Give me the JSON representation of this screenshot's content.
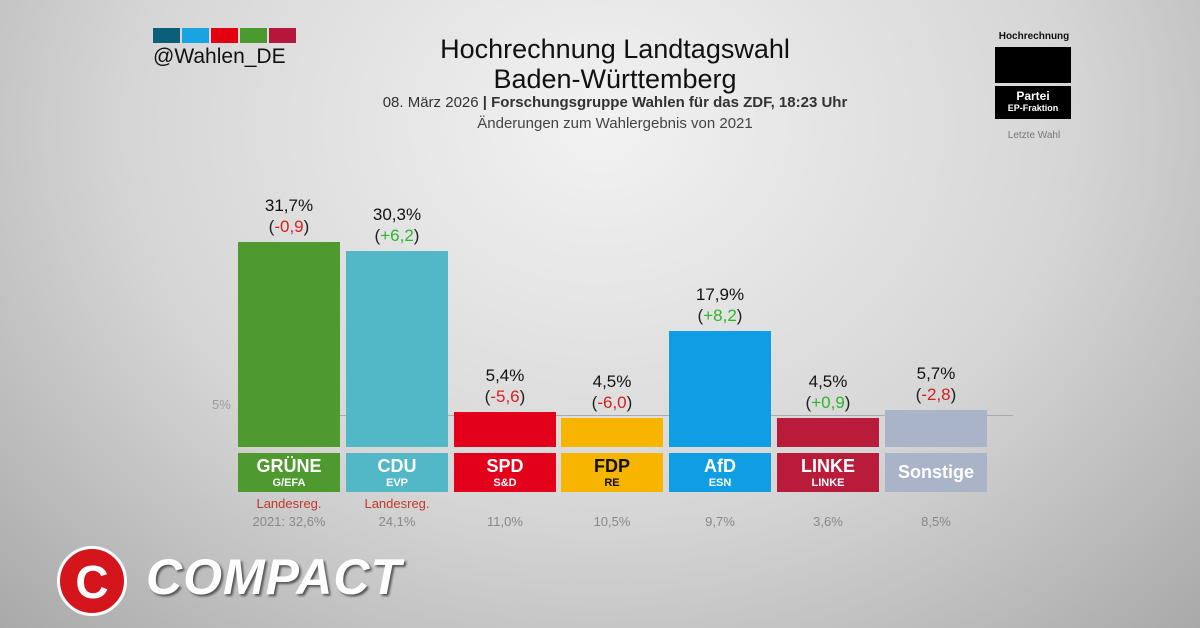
{
  "header": {
    "handle": "@Wahlen_DE",
    "title_line1": "Hochrechnung Landtagswahl",
    "title_line2": "Baden-Württemberg",
    "date": "08. März 2026",
    "separator": " | ",
    "source": "Forschungsgruppe Wahlen für das ZDF, 18:23 Uhr",
    "subtitle": "Änderungen zum Wahlergebnis von 2021",
    "swatch_colors": [
      "#0b5f7a",
      "#1aa3e3",
      "#e3000f",
      "#4a9a2e",
      "#b4163c"
    ]
  },
  "legend": {
    "title": "Hochrechnung",
    "party": "Partei",
    "faction": "EP-Fraktion",
    "last": "Letzte Wahl"
  },
  "chart_data": {
    "type": "bar",
    "categories": [
      "GRÜNE",
      "CDU",
      "SPD",
      "FDP",
      "AfD",
      "LINKE",
      "Sonstige"
    ],
    "factions": [
      "G/EFA",
      "EVP",
      "S&D",
      "RE",
      "ESN",
      "LINKE",
      ""
    ],
    "values": [
      31.7,
      30.3,
      5.4,
      4.5,
      17.9,
      4.5,
      5.7
    ],
    "value_labels": [
      "31,7%",
      "30,3%",
      "5,4%",
      "4,5%",
      "17,9%",
      "4,5%",
      "5,7%"
    ],
    "changes": [
      -0.9,
      6.2,
      -5.6,
      -6.0,
      8.2,
      0.9,
      -2.8
    ],
    "change_labels": [
      "-0,9",
      "+6,2",
      "-5,6",
      "-6,0",
      "+8,2",
      "+0,9",
      "-2,8"
    ],
    "previous_labels": [
      "2021: 32,6%",
      "24,1%",
      "11,0%",
      "10,5%",
      "9,7%",
      "3,6%",
      "8,5%"
    ],
    "government": [
      "Landesreg.",
      "Landesreg.",
      "",
      "",
      "",
      "",
      ""
    ],
    "colors": [
      "#4e9a2e",
      "#52b8c8",
      "#e3001b",
      "#f7b500",
      "#0f9ee3",
      "#b91c3b",
      "#aab4c8"
    ],
    "label_text_colors": [
      "#fff",
      "#fff",
      "#fff",
      "#111",
      "#fff",
      "#fff",
      "#fff"
    ],
    "threshold": 5,
    "threshold_label": "5%",
    "change_colors": {
      "positive": "#2db52d",
      "negative": "#d62020"
    }
  },
  "brand": {
    "logo_letter": "C",
    "logo_text": "COMPACT"
  }
}
